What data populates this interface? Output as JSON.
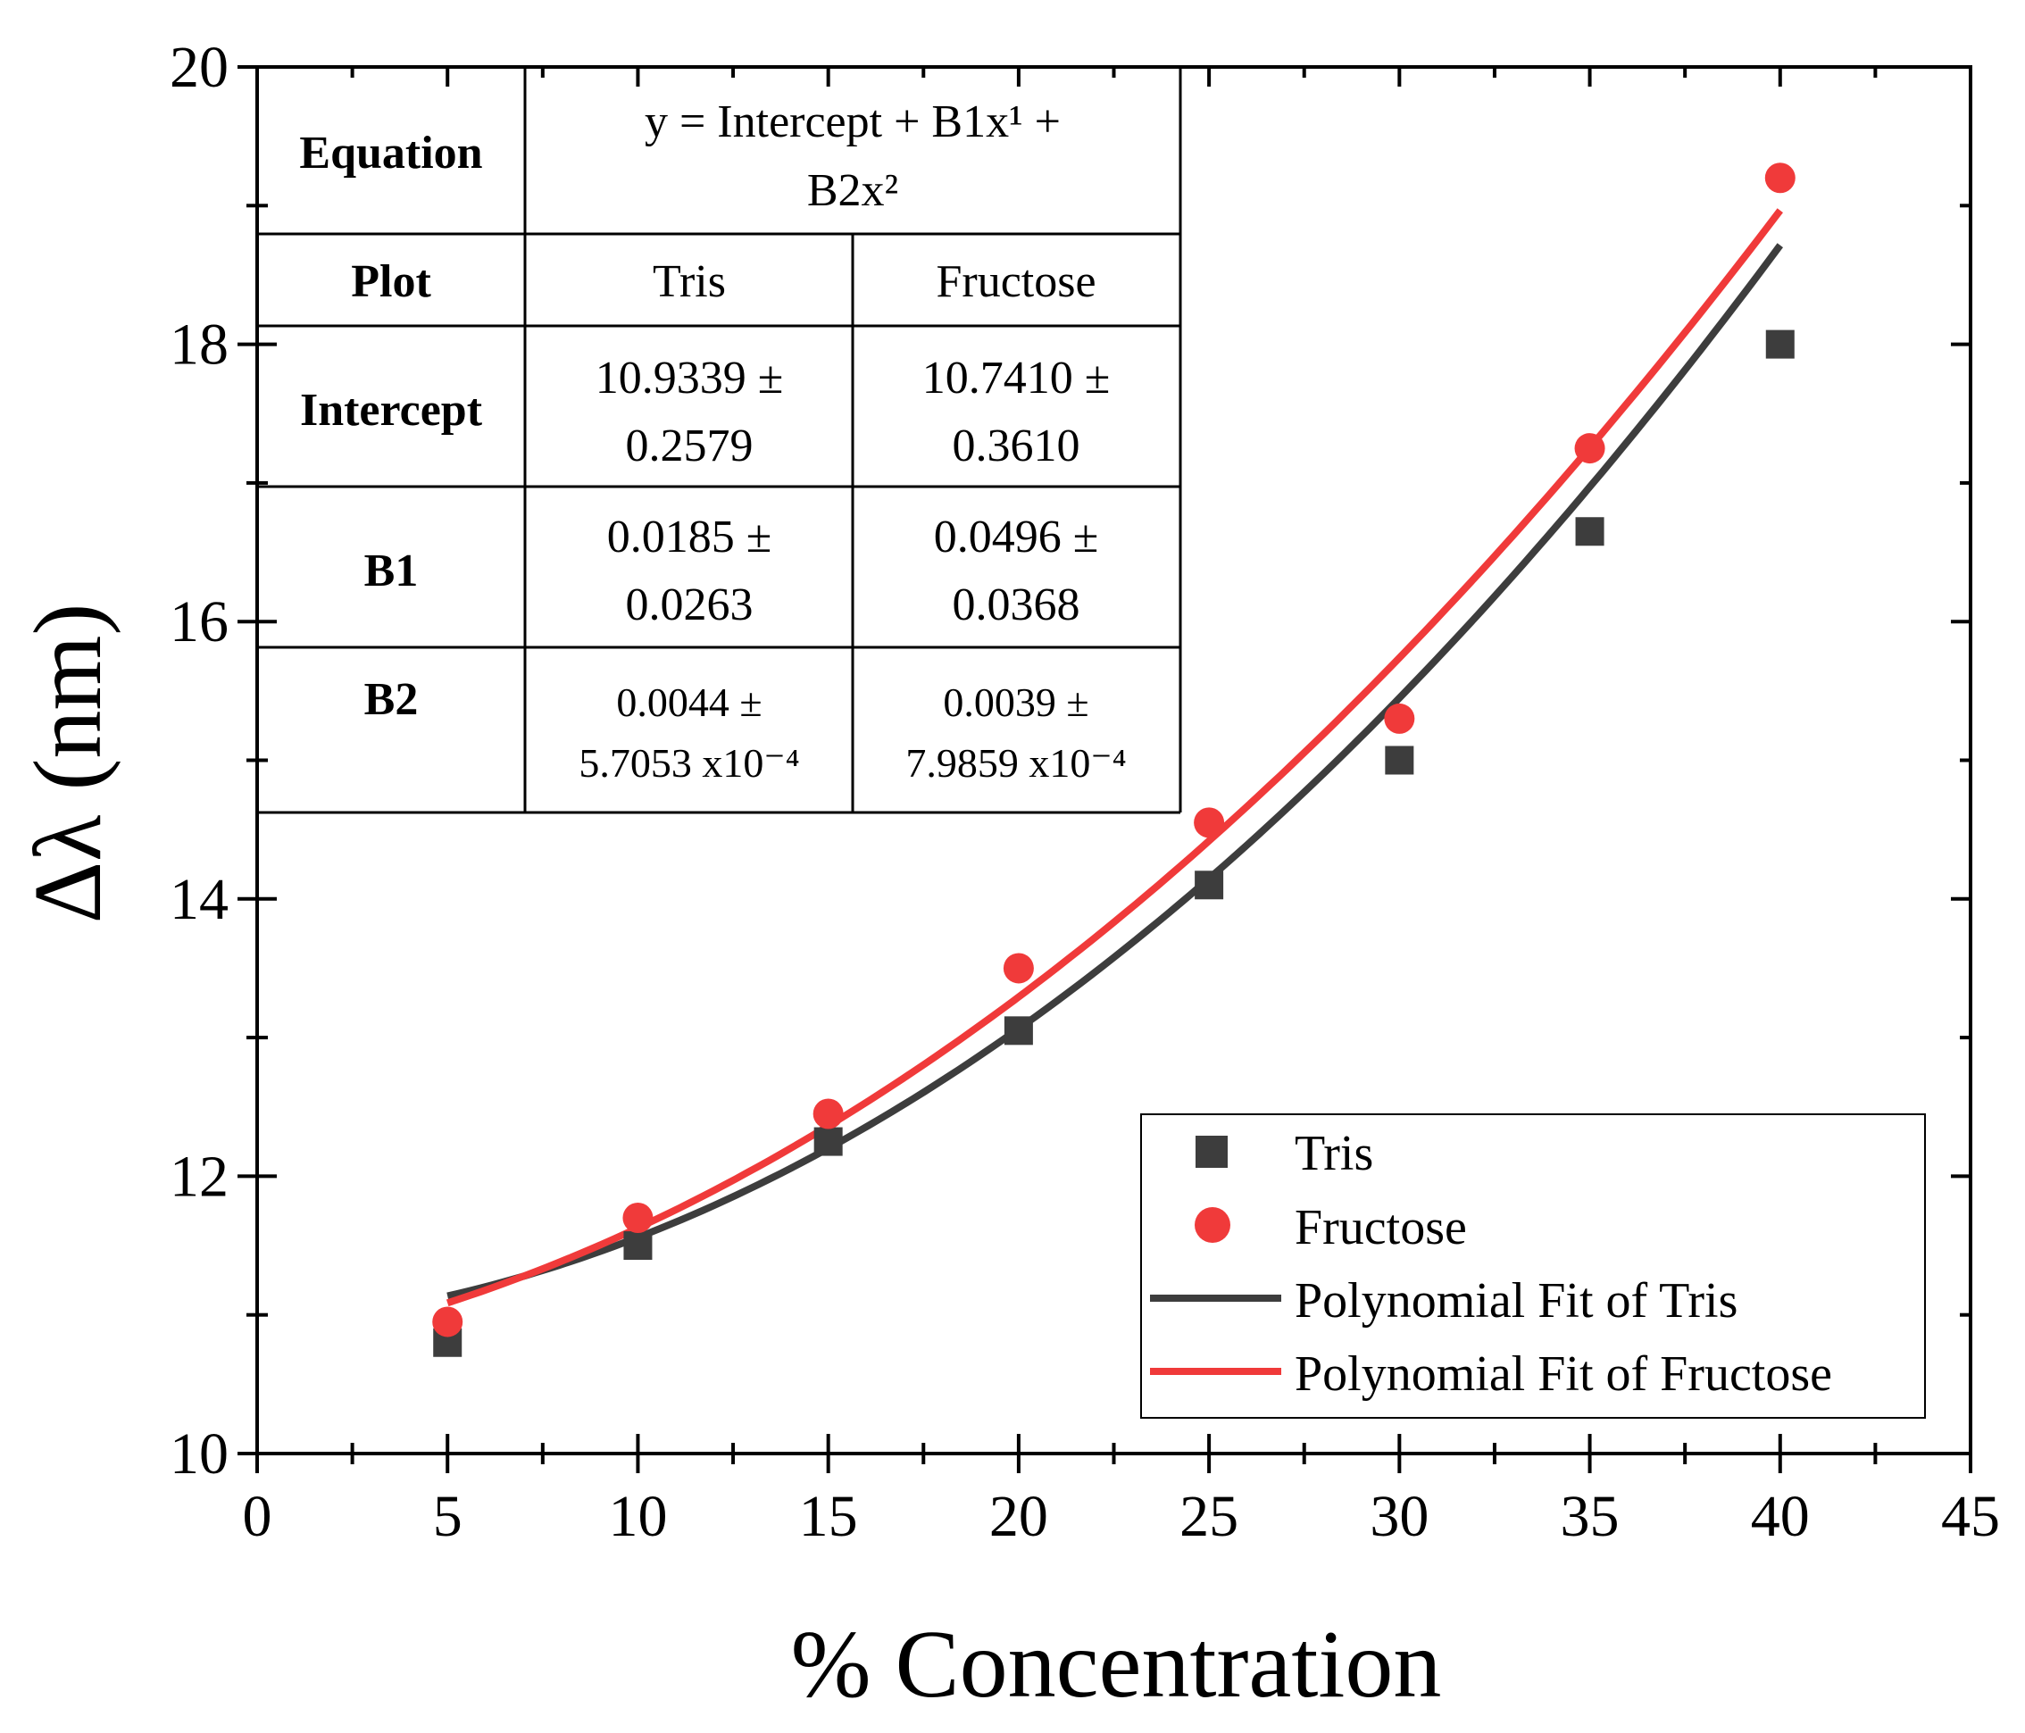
{
  "chart_data": {
    "type": "scatter",
    "xlabel": "% Concentration",
    "ylabel": "Δλ (nm)",
    "xlim": [
      0,
      45
    ],
    "ylim": [
      10,
      20
    ],
    "x_ticks": [
      "0",
      "5",
      "10",
      "15",
      "20",
      "25",
      "30",
      "35",
      "40",
      "45"
    ],
    "y_ticks": [
      "10",
      "12",
      "14",
      "16",
      "18",
      "20"
    ],
    "x": [
      5,
      10,
      15,
      20,
      25,
      30,
      35,
      40
    ],
    "series": [
      {
        "name": "Tris",
        "marker": "square",
        "color": "#3d3d3d",
        "values": [
          10.8,
          11.5,
          12.25,
          13.05,
          14.1,
          15.0,
          16.65,
          18.0
        ],
        "fit": {
          "name": "Polynomial Fit of Tris",
          "intercept": 10.9339,
          "b1": 0.0185,
          "b2": 0.0044,
          "color": "#3d3d3d"
        }
      },
      {
        "name": "Fructose",
        "marker": "circle",
        "color": "#f03a3a",
        "values": [
          10.95,
          11.7,
          12.45,
          13.5,
          14.55,
          15.3,
          17.25,
          19.2
        ],
        "fit": {
          "name": "Polynomial Fit of Fructose",
          "intercept": 10.741,
          "b1": 0.0496,
          "b2": 0.0039,
          "color": "#f03a3a"
        }
      }
    ],
    "legend_position": "bottom-right",
    "legend": [
      "Tris",
      "Fructose",
      "Polynomial Fit of Tris",
      "Polynomial Fit of Fructose"
    ]
  },
  "table": {
    "equation_label": "Equation",
    "equation_line1": "y = Intercept + B1x¹ +",
    "equation_line2": "B2x²",
    "plot_label": "Plot",
    "col_tris": "Tris",
    "col_fructose": "Fructose",
    "rows": [
      {
        "label": "Intercept",
        "tris": [
          "10.9339 ±",
          "0.2579"
        ],
        "fructose": [
          "10.7410 ±",
          "0.3610"
        ]
      },
      {
        "label": "B1",
        "tris": [
          "0.0185 ±",
          "0.0263"
        ],
        "fructose": [
          "0.0496 ±",
          "0.0368"
        ]
      },
      {
        "label": "B2",
        "tris": [
          "0.0044 ±",
          "5.7053 x10⁻⁴"
        ],
        "fructose": [
          "0.0039 ±",
          "7.9859 x10⁻⁴"
        ]
      }
    ]
  }
}
